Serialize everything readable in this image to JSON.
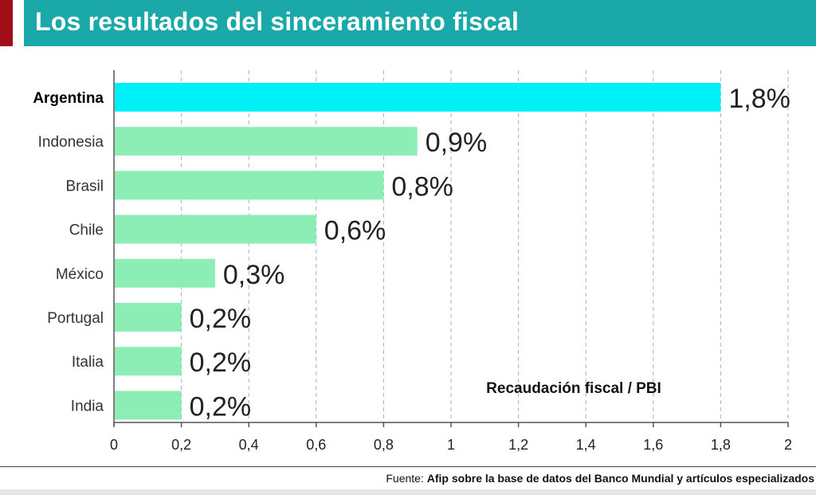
{
  "title": "Los resultados del sinceramiento fiscal",
  "colors": {
    "title_bg": "#1aa8a8",
    "accent": "#a10f16",
    "highlight_bar": "#00f0f8",
    "bar": "#8ceeb4",
    "grid": "#9fb4c8"
  },
  "chart_data": {
    "type": "bar",
    "orientation": "horizontal",
    "categories": [
      "Argentina",
      "Indonesia",
      "Brasil",
      "Chile",
      "México",
      "Portugal",
      "Italia",
      "India"
    ],
    "values": [
      1.8,
      0.9,
      0.8,
      0.6,
      0.3,
      0.2,
      0.2,
      0.2
    ],
    "value_labels": [
      "1,8%",
      "0,9%",
      "0,8%",
      "0,6%",
      "0,3%",
      "0,2%",
      "0,2%",
      "0,2%"
    ],
    "highlight": "Argentina",
    "xlim": [
      0,
      2
    ],
    "x_ticks": [
      0,
      0.2,
      0.4,
      0.6,
      0.8,
      1,
      1.2,
      1.4,
      1.6,
      1.8,
      2
    ],
    "x_tick_labels": [
      "0",
      "0,2",
      "0,4",
      "0,6",
      "0,8",
      "1",
      "1,2",
      "1,4",
      "1,6",
      "1,8",
      "2"
    ],
    "annotation": "Recaudación fiscal / PBI",
    "grid": "vertical-dashed"
  },
  "source": {
    "prefix": "Fuente: ",
    "text": "Afip sobre la base de datos del Banco Mundial y artículos especializados"
  }
}
